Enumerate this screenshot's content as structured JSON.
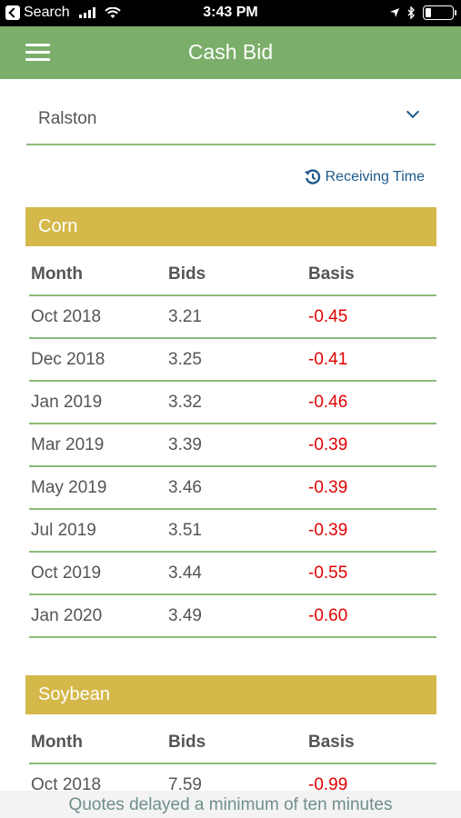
{
  "status": {
    "carrier": "Search",
    "time": "3:43 PM"
  },
  "nav": {
    "title": "Cash Bid"
  },
  "location": {
    "value": "Ralston"
  },
  "receiving_time_label": "Receiving Time",
  "colors": {
    "nav_green": "#7bae6a",
    "section_gold": "#d4b84a",
    "negative_red": "#e20000",
    "link_blue": "#1f5a8c"
  },
  "sections": [
    {
      "name": "Corn",
      "columns": [
        "Month",
        "Bids",
        "Basis"
      ],
      "rows": [
        [
          "Oct 2018",
          "3.21",
          "-0.45"
        ],
        [
          "Dec 2018",
          "3.25",
          "-0.41"
        ],
        [
          "Jan 2019",
          "3.32",
          "-0.46"
        ],
        [
          "Mar 2019",
          "3.39",
          "-0.39"
        ],
        [
          "May 2019",
          "3.46",
          "-0.39"
        ],
        [
          "Jul 2019",
          "3.51",
          "-0.39"
        ],
        [
          "Oct 2019",
          "3.44",
          "-0.55"
        ],
        [
          "Jan 2020",
          "3.49",
          "-0.60"
        ]
      ]
    },
    {
      "name": "Soybean",
      "columns": [
        "Month",
        "Bids",
        "Basis"
      ],
      "rows": [
        [
          "Oct 2018",
          "7.59",
          "-0.99"
        ]
      ]
    }
  ],
  "footer": "Quotes delayed a minimum of ten minutes"
}
